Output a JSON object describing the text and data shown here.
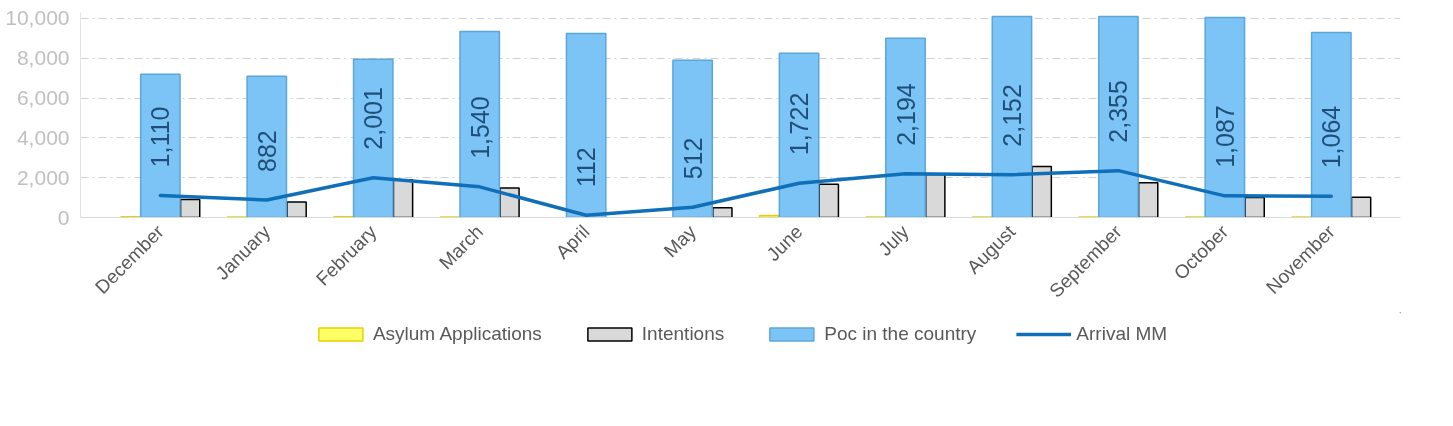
{
  "chart_data": {
    "type": "bar",
    "categories": [
      "December",
      "January",
      "February",
      "March",
      "April",
      "May",
      "June",
      "July",
      "August",
      "September",
      "October",
      "November"
    ],
    "series": [
      {
        "name": "Asylum Applications",
        "color": "#ffff66",
        "values": [
          40,
          20,
          40,
          20,
          null,
          null,
          100,
          20,
          20,
          20,
          20,
          20
        ]
      },
      {
        "name": "Intentions",
        "color": "#d9d9d9",
        "values": [
          900,
          780,
          1900,
          1480,
          null,
          490,
          1670,
          2160,
          2560,
          1750,
          1000,
          1020
        ]
      },
      {
        "name": "Poc in the country",
        "color": "#7cc4f5",
        "values": [
          7200,
          7100,
          7950,
          9350,
          9250,
          7900,
          8250,
          9000,
          10100,
          10100,
          10050,
          9300
        ]
      },
      {
        "name": "Arrival MM",
        "type": "line",
        "color": "#0f6fb8",
        "values": [
          1110,
          882,
          2001,
          1540,
          112,
          512,
          1722,
          2194,
          2152,
          2355,
          1087,
          1064
        ],
        "value_labels": [
          "1,110",
          "882",
          "2,001",
          "1,540",
          "112",
          "512",
          "1,722",
          "2,194",
          "2,152",
          "2,355",
          "1,087",
          "1,064"
        ]
      }
    ],
    "ylim": [
      0,
      10300
    ],
    "yticks": [
      {
        "value": 0,
        "label": "0"
      },
      {
        "value": 2000,
        "label": "2,000"
      },
      {
        "value": 4000,
        "label": "4,000"
      },
      {
        "value": 6000,
        "label": "6,000"
      },
      {
        "value": 8000,
        "label": "8,000"
      },
      {
        "value": 10000,
        "label": "10,000"
      }
    ],
    "grid": "y",
    "legend": "bottom",
    "marker": "none",
    "line_style": "solid"
  }
}
